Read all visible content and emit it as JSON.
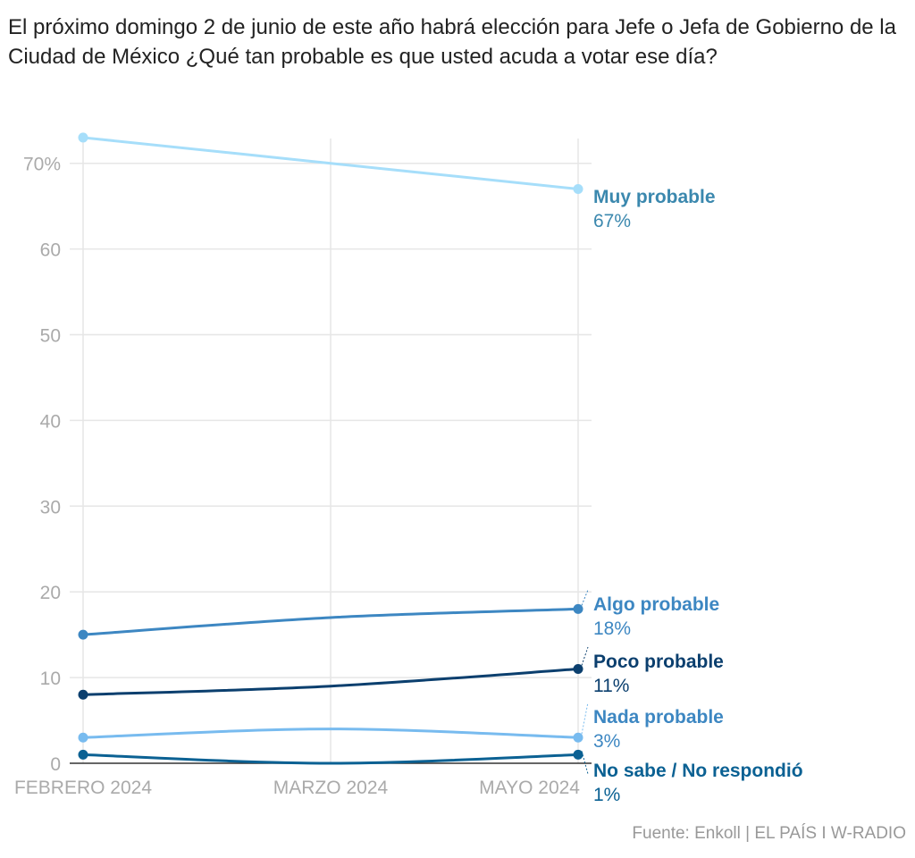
{
  "chart_data": {
    "type": "line",
    "title": "El próximo domingo 2 de junio de este año habrá elección para Jefe o Jefa de Gobierno de la Ciudad de México ¿Qué tan probable es que usted acuda a votar ese día?",
    "categories": [
      "FEBRERO 2024",
      "MARZO 2024",
      "MAYO 2024"
    ],
    "ylim": [
      0,
      73
    ],
    "yticks": [
      0,
      10,
      20,
      30,
      40,
      50,
      60,
      70
    ],
    "ytick_labels": [
      "0",
      "10",
      "20",
      "30",
      "40",
      "50",
      "60",
      "70%"
    ],
    "grid": true,
    "series": [
      {
        "name": "Muy probable",
        "values": [
          73,
          70,
          67
        ],
        "end_label": "67%",
        "color": "#a6defa",
        "label_color": "#3b88ae"
      },
      {
        "name": "Algo probable",
        "values": [
          15,
          17,
          18
        ],
        "end_label": "18%",
        "color": "#3d87c2",
        "label_color": "#3d87c2"
      },
      {
        "name": "Poco probable",
        "values": [
          8,
          9,
          11
        ],
        "end_label": "11%",
        "color": "#0b3f6e",
        "label_color": "#0b3f6e"
      },
      {
        "name": "Nada probable",
        "values": [
          3,
          4,
          3
        ],
        "end_label": "3%",
        "color": "#78bbef",
        "label_color": "#3d87c2"
      },
      {
        "name": "No sabe / No respondió",
        "values": [
          1,
          0,
          1
        ],
        "end_label": "1%",
        "color": "#0b6193",
        "label_color": "#0b6193"
      }
    ],
    "source": "Fuente: Enkoll | EL PAÍS I W-RADIO"
  }
}
